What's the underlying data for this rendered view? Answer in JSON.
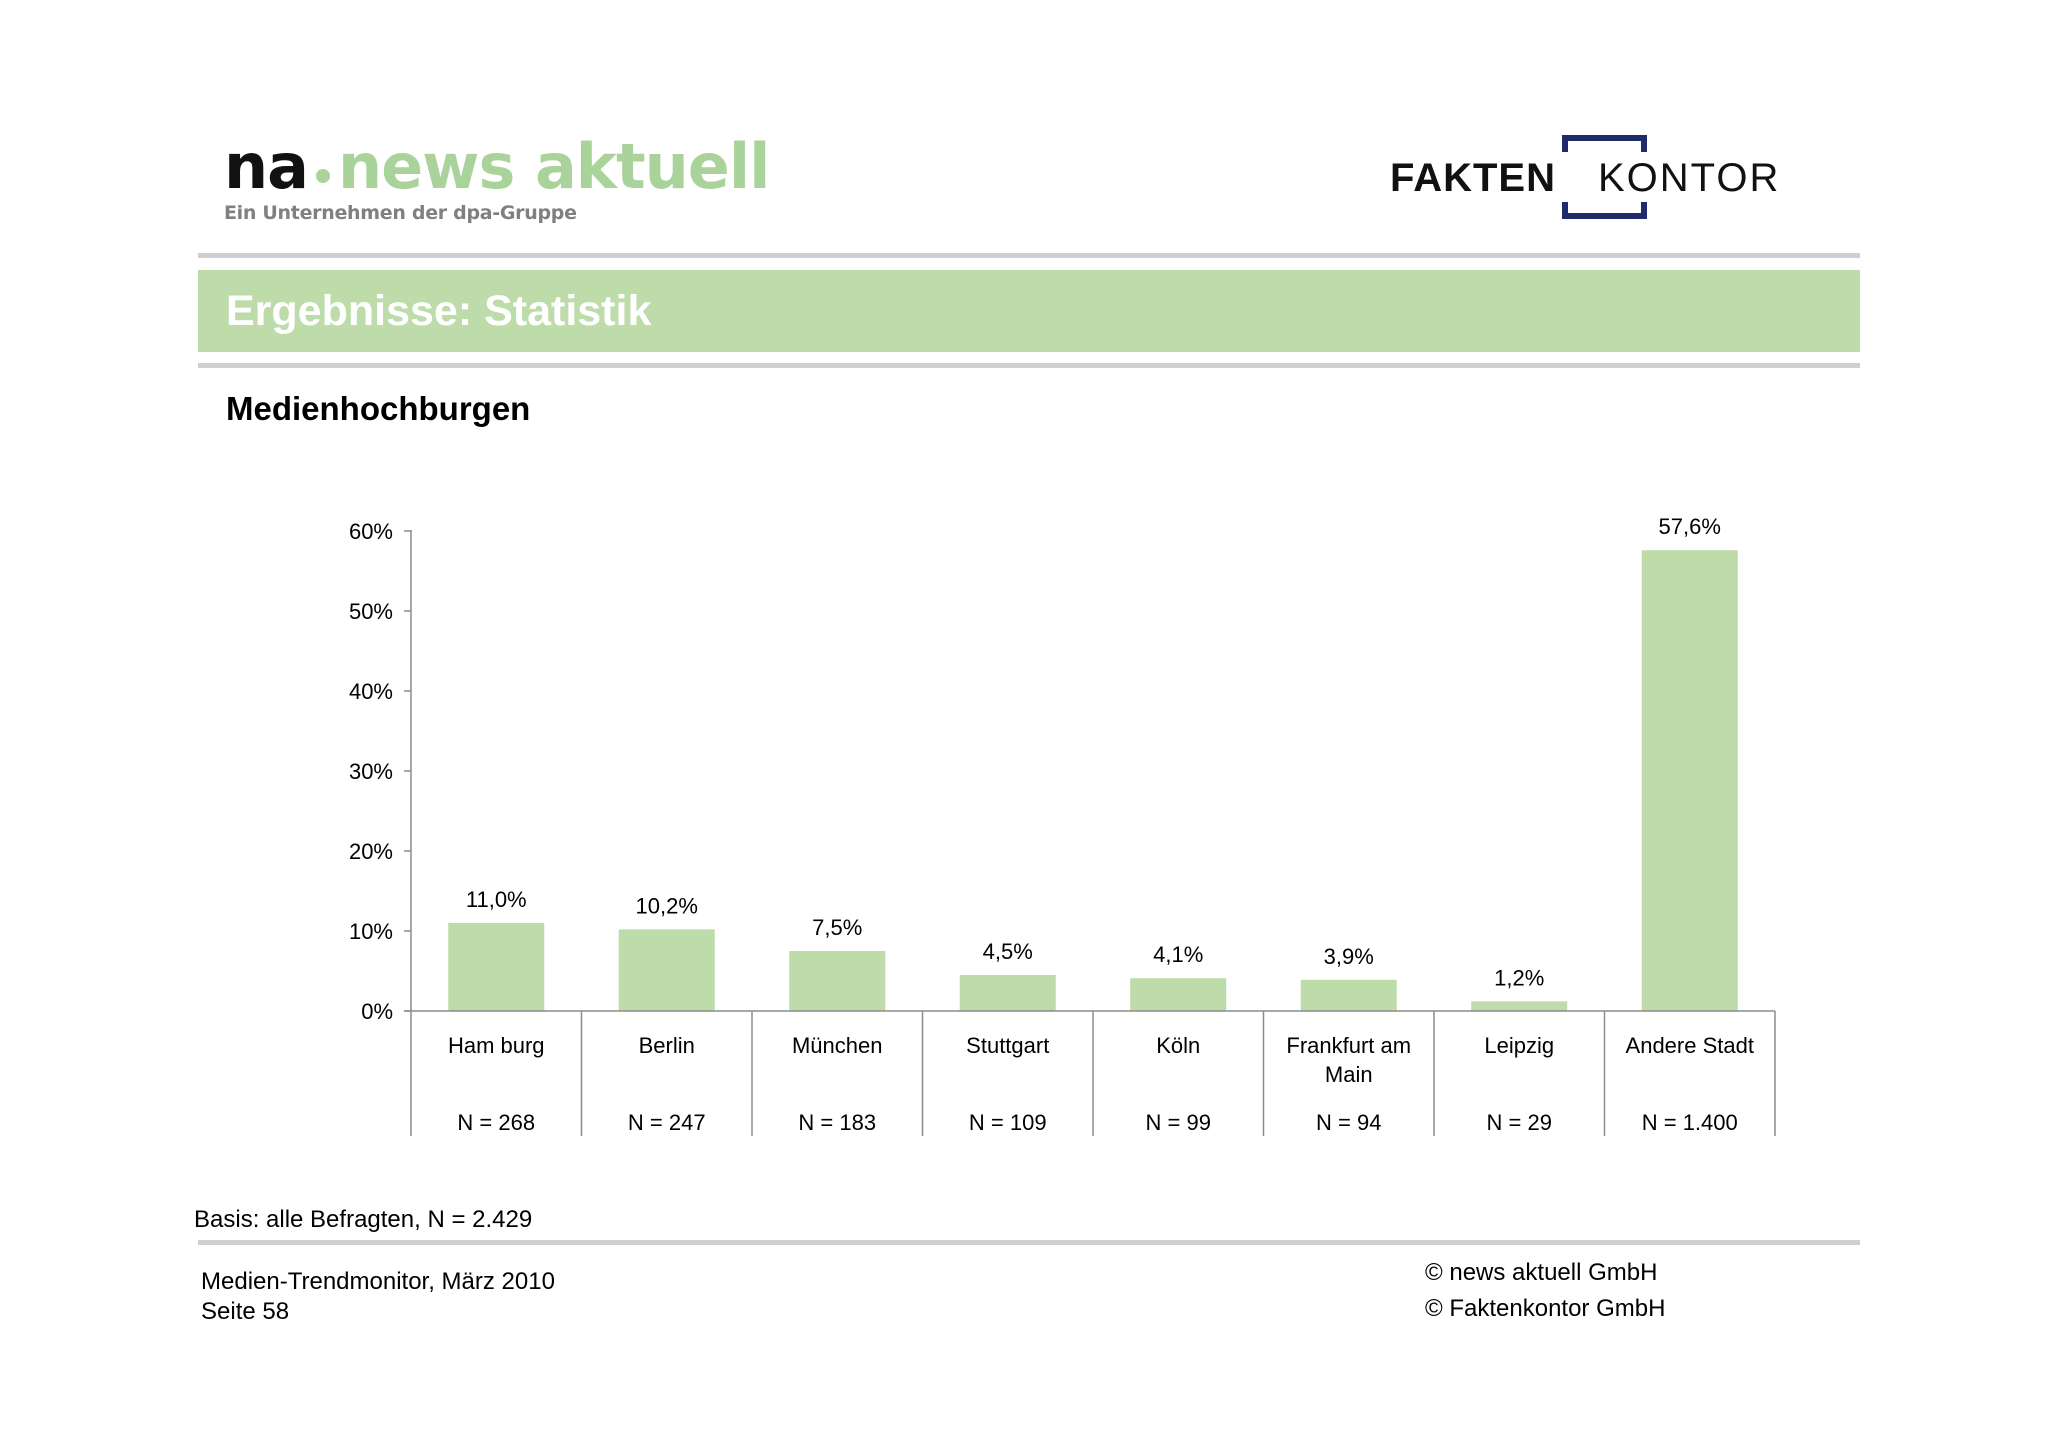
{
  "colors": {
    "accent_green": "#bedcaa",
    "logo_green": "#a9d39b",
    "logo_navy": "#1f2a6b",
    "rule_gray": "#cfcfcf"
  },
  "header": {
    "na_logo": {
      "na": "na",
      "news": "news aktuell",
      "tagline": "Ein Unternehmen der dpa-Gruppe"
    },
    "fk_logo": {
      "fakten": "FAKTEN",
      "kontor": "KONTOR"
    }
  },
  "title": "Ergebnisse: Statistik",
  "subtitle": "Medienhochburgen",
  "chart_data": {
    "type": "bar",
    "categories": [
      "Hamburg",
      "Berlin",
      "München",
      "Stuttgart",
      "Köln",
      "Frankfurt am Main",
      "Leipzig",
      "Andere Stadt"
    ],
    "category_lines": [
      [
        "Ham burg"
      ],
      [
        "Berlin"
      ],
      [
        "München"
      ],
      [
        "Stuttgart"
      ],
      [
        "Köln"
      ],
      [
        "Frankfurt am",
        "Main"
      ],
      [
        "Leipzig"
      ],
      [
        "Andere Stadt"
      ]
    ],
    "values": [
      11.0,
      10.2,
      7.5,
      4.5,
      4.1,
      3.9,
      1.2,
      57.6
    ],
    "value_labels": [
      "11,0%",
      "10,2%",
      "7,5%",
      "4,5%",
      "4,1%",
      "3,9%",
      "1,2%",
      "57,6%"
    ],
    "n_labels": [
      "N = 268",
      "N = 247",
      "N = 183",
      "N = 109",
      "N = 99",
      "N = 94",
      "N = 29",
      "N = 1.400"
    ],
    "yticks": [
      0,
      10,
      20,
      30,
      40,
      50,
      60
    ],
    "ytick_labels": [
      "0%",
      "10%",
      "20%",
      "30%",
      "40%",
      "50%",
      "60%"
    ],
    "ylim": [
      0,
      60
    ],
    "color": "#bedcaa",
    "grid": false,
    "legend": "none",
    "xlabel": "",
    "ylabel": ""
  },
  "footer": {
    "basis": "Basis: alle Befragten, N = 2.429",
    "line1": "Medien-Trendmonitor, März 2010",
    "line2": "Seite 58",
    "copyright1": "© news aktuell GmbH",
    "copyright2": "© Faktenkontor GmbH"
  }
}
